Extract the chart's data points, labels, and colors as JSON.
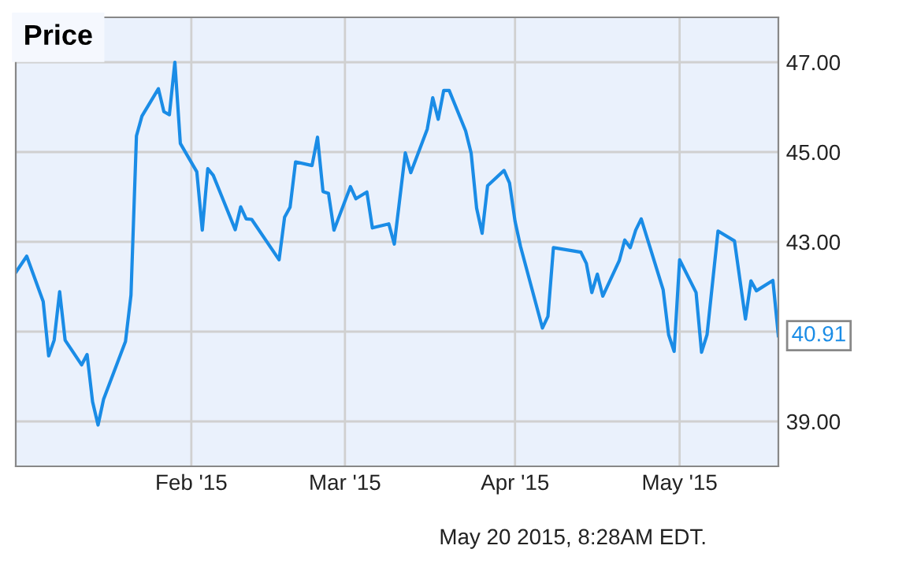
{
  "chart_data": {
    "type": "line",
    "title": "Price",
    "x": [
      "2014-12-31",
      "2015-01-02",
      "2015-01-05",
      "2015-01-06",
      "2015-01-07",
      "2015-01-08",
      "2015-01-09",
      "2015-01-12",
      "2015-01-13",
      "2015-01-14",
      "2015-01-15",
      "2015-01-16",
      "2015-01-20",
      "2015-01-21",
      "2015-01-22",
      "2015-01-23",
      "2015-01-26",
      "2015-01-27",
      "2015-01-28",
      "2015-01-29",
      "2015-01-30",
      "2015-02-02",
      "2015-02-03",
      "2015-02-04",
      "2015-02-05",
      "2015-02-09",
      "2015-02-10",
      "2015-02-11",
      "2015-02-12",
      "2015-02-17",
      "2015-02-18",
      "2015-02-19",
      "2015-02-20",
      "2015-02-23",
      "2015-02-24",
      "2015-02-25",
      "2015-02-26",
      "2015-02-27",
      "2015-03-02",
      "2015-03-03",
      "2015-03-05",
      "2015-03-06",
      "2015-03-09",
      "2015-03-10",
      "2015-03-12",
      "2015-03-13",
      "2015-03-16",
      "2015-03-17",
      "2015-03-18",
      "2015-03-19",
      "2015-03-20",
      "2015-03-23",
      "2015-03-24",
      "2015-03-25",
      "2015-03-26",
      "2015-03-27",
      "2015-03-30",
      "2015-03-31",
      "2015-04-01",
      "2015-04-02",
      "2015-04-06",
      "2015-04-07",
      "2015-04-08",
      "2015-04-13",
      "2015-04-14",
      "2015-04-15",
      "2015-04-16",
      "2015-04-17",
      "2015-04-20",
      "2015-04-21",
      "2015-04-22",
      "2015-04-23",
      "2015-04-24",
      "2015-04-28",
      "2015-04-29",
      "2015-04-30",
      "2015-05-01",
      "2015-05-04",
      "2015-05-05",
      "2015-05-06",
      "2015-05-08",
      "2015-05-11",
      "2015-05-13",
      "2015-05-14",
      "2015-05-15",
      "2015-05-18",
      "2015-05-19"
    ],
    "series": [
      {
        "color": "#1a8ce6",
        "values": [
          42.32,
          42.68,
          41.67,
          40.46,
          40.81,
          41.89,
          40.81,
          40.26,
          40.49,
          39.44,
          38.92,
          39.49,
          40.78,
          41.81,
          45.36,
          45.8,
          46.41,
          45.9,
          45.83,
          47.0,
          45.19,
          44.56,
          43.26,
          44.63,
          44.48,
          43.27,
          43.78,
          43.51,
          43.5,
          42.6,
          43.55,
          43.77,
          44.78,
          44.7,
          45.33,
          44.12,
          44.08,
          43.26,
          44.23,
          43.96,
          44.11,
          43.31,
          43.4,
          42.95,
          44.98,
          44.54,
          45.51,
          46.21,
          45.73,
          46.37,
          46.37,
          45.47,
          44.98,
          43.75,
          43.19,
          44.25,
          44.59,
          44.31,
          43.46,
          42.9,
          41.08,
          41.34,
          42.87,
          42.77,
          42.52,
          41.87,
          42.28,
          41.79,
          42.58,
          43.04,
          42.87,
          43.26,
          43.51,
          41.93,
          40.93,
          40.56,
          42.6,
          41.87,
          40.54,
          40.93,
          43.24,
          43.02,
          41.28,
          42.13,
          41.91,
          42.14,
          40.91
        ]
      }
    ],
    "xlim": [
      "2014-12-31",
      "2015-05-19"
    ],
    "xticks": [
      {
        "value": "2015-02-01",
        "label": "Feb '15"
      },
      {
        "value": "2015-03-01",
        "label": "Mar '15"
      },
      {
        "value": "2015-04-01",
        "label": "Apr '15"
      },
      {
        "value": "2015-05-01",
        "label": "May '15"
      }
    ],
    "ylim": [
      38,
      48
    ],
    "yticks": [
      {
        "value": 39,
        "label": "39.00"
      },
      {
        "value": 41,
        "label": null
      },
      {
        "value": 43,
        "label": "43.00"
      },
      {
        "value": 45,
        "label": "45.00"
      },
      {
        "value": 47,
        "label": "47.00"
      }
    ],
    "grid": true,
    "legend": false,
    "marker": "none",
    "line_style": "solid",
    "annotations": [
      {
        "text": "40.91",
        "x": "2015-05-19",
        "y": 40.91
      },
      "May 20 2015, 8:28AM EDT."
    ]
  }
}
